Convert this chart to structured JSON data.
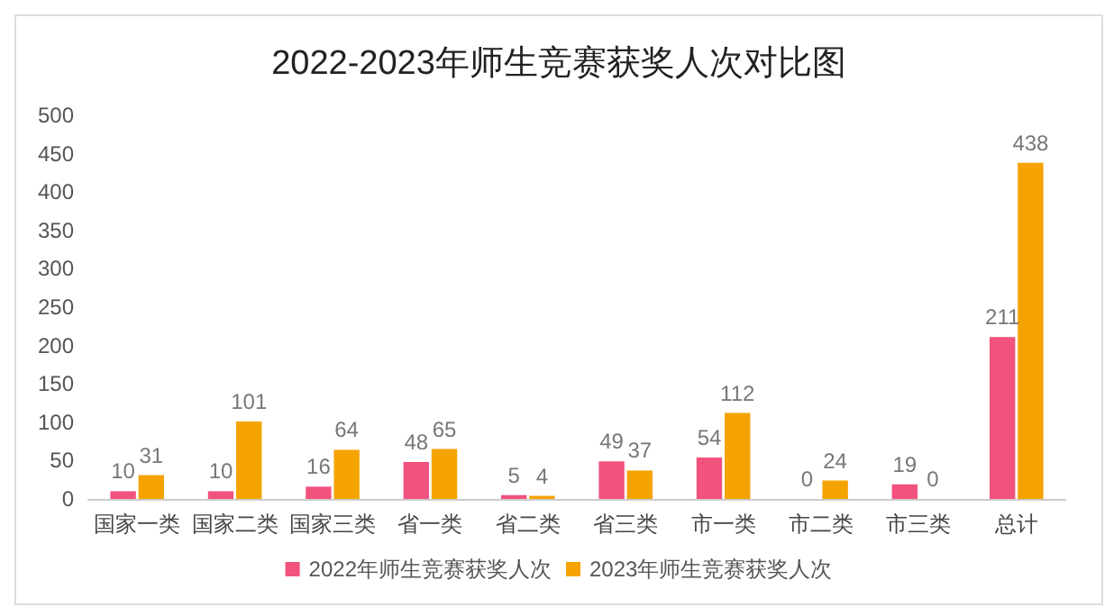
{
  "chart_data": {
    "type": "bar",
    "title": "2022-2023年师生竞赛获奖人次对比图",
    "categories": [
      "国家一类",
      "国家二类",
      "国家三类",
      "省一类",
      "省二类",
      "省三类",
      "市一类",
      "市二类",
      "市三类",
      "总计"
    ],
    "series": [
      {
        "name": "2022年师生竞赛获奖人次",
        "color": "#f2527e",
        "values": [
          10,
          10,
          16,
          48,
          5,
          49,
          54,
          0,
          19,
          211
        ]
      },
      {
        "name": "2023年师生竞赛获奖人次",
        "color": "#f5a300",
        "values": [
          31,
          101,
          64,
          65,
          4,
          37,
          112,
          24,
          0,
          438
        ]
      }
    ],
    "ylim": [
      0,
      500
    ],
    "yticks": [
      0,
      50,
      100,
      150,
      200,
      250,
      300,
      350,
      400,
      450,
      500
    ],
    "grid": false,
    "legend": "bottom",
    "data_labels": true
  }
}
